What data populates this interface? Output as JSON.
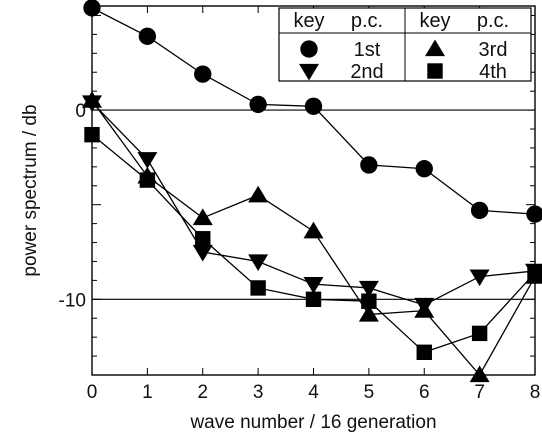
{
  "chart_data": {
    "type": "line",
    "xlabel": "wave number / 16 generation",
    "ylabel": "power spectrum / db",
    "xlim": [
      0,
      8
    ],
    "ylim": [
      -14,
      5.5
    ],
    "x": [
      0,
      1,
      2,
      3,
      4,
      5,
      6,
      7,
      8
    ],
    "x_ticks": [
      0,
      1,
      2,
      3,
      4,
      5,
      6,
      7,
      8
    ],
    "y_ticks": [
      0,
      -10
    ],
    "y_tick_labels": [
      "0",
      "-10"
    ],
    "reference_lines": [
      0,
      -10
    ],
    "grid": false,
    "legend_placement": "top-right",
    "legend_header": [
      "key",
      "p.c.",
      "key",
      "p.c."
    ],
    "series": [
      {
        "name": "1st",
        "marker": "circle",
        "values": [
          5.4,
          3.9,
          1.9,
          0.3,
          0.2,
          -2.9,
          -3.1,
          -5.3,
          -5.5
        ]
      },
      {
        "name": "2nd",
        "marker": "triangle-down",
        "values": [
          0.4,
          -2.6,
          -7.5,
          -8.0,
          -9.2,
          -9.4,
          -10.3,
          -8.8,
          -8.5
        ]
      },
      {
        "name": "3rd",
        "marker": "triangle-up",
        "values": [
          0.5,
          -3.5,
          -5.7,
          -4.5,
          -6.4,
          -10.8,
          -10.6,
          -14.0,
          -8.8
        ]
      },
      {
        "name": "4th",
        "marker": "square",
        "values": [
          -1.3,
          -3.7,
          -6.8,
          -9.4,
          -10.0,
          -10.1,
          -12.8,
          -11.8,
          -8.6
        ]
      }
    ]
  }
}
